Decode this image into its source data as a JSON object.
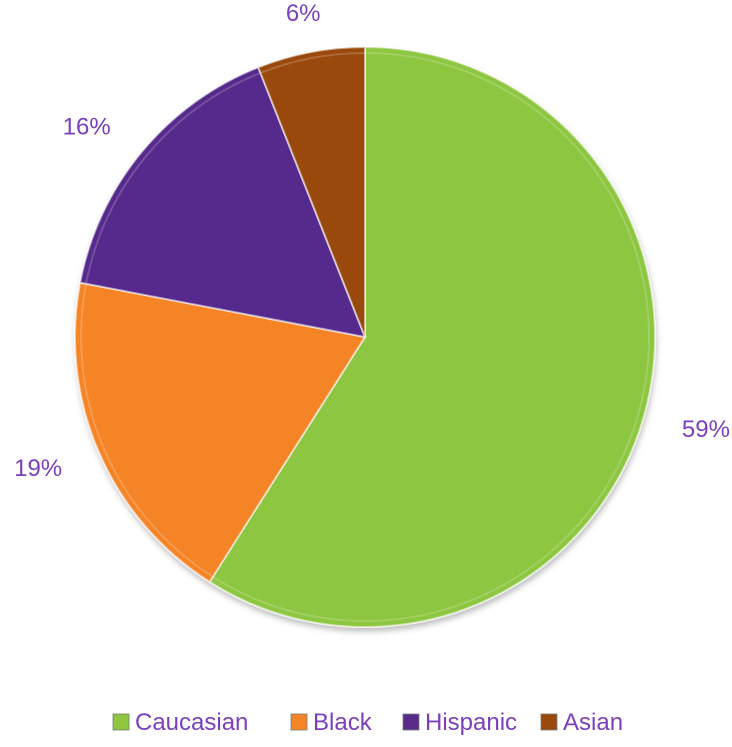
{
  "chart_data": {
    "type": "pie",
    "title": "",
    "slices": [
      {
        "label": "Caucasian",
        "value": 59,
        "display": "59%",
        "color": "#8DC63F"
      },
      {
        "label": "Black",
        "value": 19,
        "display": "19%",
        "color": "#F58426"
      },
      {
        "label": "Hispanic",
        "value": 16,
        "display": "16%",
        "color": "#572A8C"
      },
      {
        "label": "Asian",
        "value": 6,
        "display": "6%",
        "color": "#9A4A0D"
      }
    ],
    "start_angle": "12 o'clock",
    "direction": "clockwise",
    "label_color": "#7B3FBE",
    "legend": {
      "position": "bottom",
      "items": [
        "Caucasian",
        "Black",
        "Hispanic",
        "Asian"
      ]
    }
  }
}
